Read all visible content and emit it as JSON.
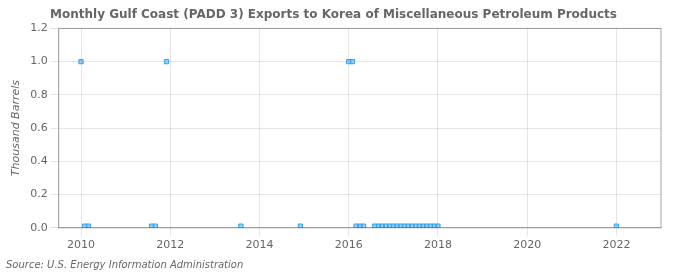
{
  "chart_data": {
    "type": "scatter",
    "title": "Monthly Gulf Coast (PADD 3) Exports to Korea of Miscellaneous Petroleum Products",
    "y_label": "Thousand Barrels",
    "annotations": [
      "Source: U.S. Energy Information Administration"
    ],
    "x": [
      2010.0,
      2010.083,
      2010.167,
      2011.583,
      2011.667,
      2011.917,
      2013.583,
      2014.917,
      2016.0,
      2016.083,
      2016.167,
      2016.25,
      2016.333,
      2016.583,
      2016.667,
      2016.75,
      2016.833,
      2016.917,
      2017.0,
      2017.083,
      2017.167,
      2017.25,
      2017.333,
      2017.417,
      2017.5,
      2017.583,
      2017.667,
      2017.75,
      2017.833,
      2017.917,
      2018.0,
      2022.0
    ],
    "values": [
      1.0,
      0.01,
      0.01,
      0.01,
      0.01,
      1.0,
      0.01,
      0.01,
      1.0,
      1.0,
      0.01,
      0.01,
      0.01,
      0.01,
      0.01,
      0.01,
      0.01,
      0.01,
      0.01,
      0.01,
      0.01,
      0.01,
      0.01,
      0.01,
      0.01,
      0.01,
      0.01,
      0.01,
      0.01,
      0.01,
      0.01,
      0.01
    ],
    "marker": "square",
    "xlim": [
      2009.5,
      2023.0
    ],
    "xticks": [
      2010,
      2012,
      2014,
      2016,
      2018,
      2020,
      2022
    ],
    "ylim": [
      0,
      1.2
    ],
    "yticks": [
      {
        "value": 0,
        "label": "0.0"
      },
      0.2,
      0.4,
      0.6,
      0.8,
      {
        "value": 1,
        "label": "1.0"
      },
      1.2
    ],
    "grid": true
  }
}
